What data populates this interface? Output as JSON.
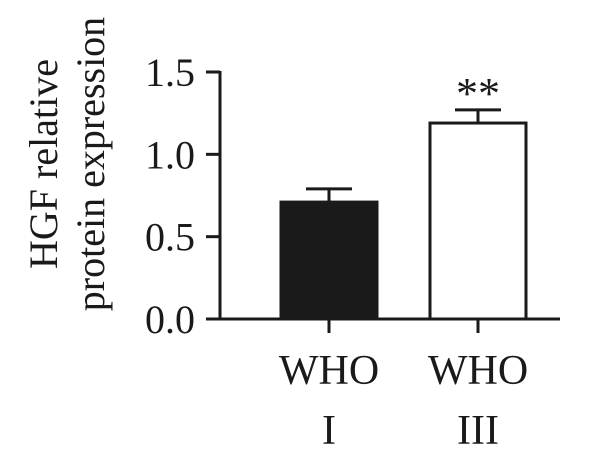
{
  "chart_data": {
    "type": "bar",
    "categories": [
      {
        "line1": "WHO",
        "line2": "I"
      },
      {
        "line1": "WHO",
        "line2": "III"
      }
    ],
    "values": [
      0.71,
      1.19
    ],
    "errors": [
      0.08,
      0.08
    ],
    "bar_colors": [
      "#1a1a1a",
      "#ffffff"
    ],
    "bar_edge_color": "#1a1a1a",
    "annotations": [
      "",
      "**"
    ],
    "ylabel_line1": "HGF relative",
    "ylabel_line2": "protein expression",
    "ylim": [
      0,
      1.5
    ],
    "yticks": [
      {
        "value": 0.0,
        "label": "0.0"
      },
      {
        "value": 0.5,
        "label": "0.5"
      },
      {
        "value": 1.0,
        "label": "1.0"
      },
      {
        "value": 1.5,
        "label": "1.5"
      }
    ],
    "grid": false
  }
}
